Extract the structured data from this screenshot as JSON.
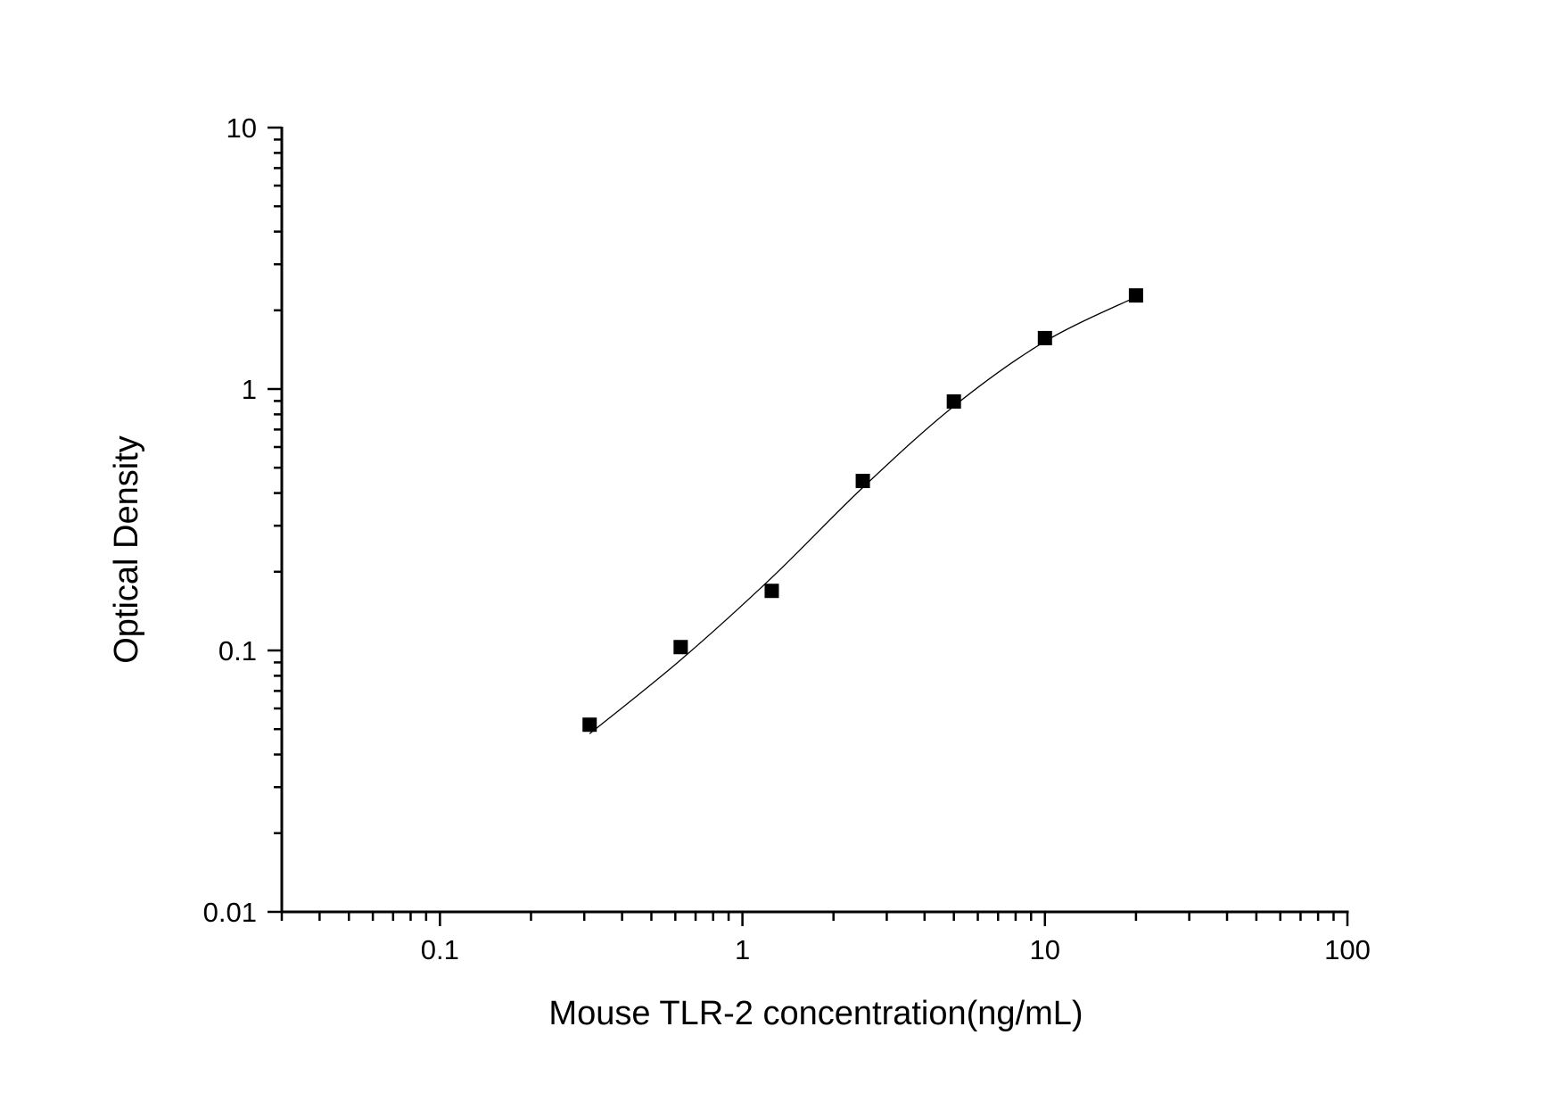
{
  "chart_data": {
    "type": "scatter",
    "title": "",
    "xlabel": "Mouse TLR-2 concentration(ng/mL)",
    "ylabel": "Optical Density",
    "xscale": "log",
    "yscale": "log",
    "xlim": [
      0.03,
      100
    ],
    "ylim": [
      0.01,
      10
    ],
    "x_ticks": [
      0.1,
      1,
      10,
      100
    ],
    "x_tick_labels": [
      "0.1",
      "1",
      "10",
      "100"
    ],
    "y_ticks": [
      0.01,
      0.1,
      1,
      10
    ],
    "y_tick_labels": [
      "0.01",
      "0.1",
      "1",
      "10"
    ],
    "grid": false,
    "legend": null,
    "series": [
      {
        "name": "Standard points",
        "marker": "square",
        "color": "#000000",
        "x": [
          0.3125,
          0.625,
          1.25,
          2.5,
          5,
          10,
          20
        ],
        "y": [
          0.052,
          0.103,
          0.169,
          0.445,
          0.896,
          1.566,
          2.28
        ]
      },
      {
        "name": "Fitted curve",
        "line": "solid",
        "color": "#000000",
        "x": [
          0.3125,
          0.625,
          1.25,
          2.5,
          5,
          10,
          20
        ],
        "y": [
          0.048,
          0.092,
          0.19,
          0.42,
          0.86,
          1.52,
          2.25
        ]
      }
    ]
  }
}
